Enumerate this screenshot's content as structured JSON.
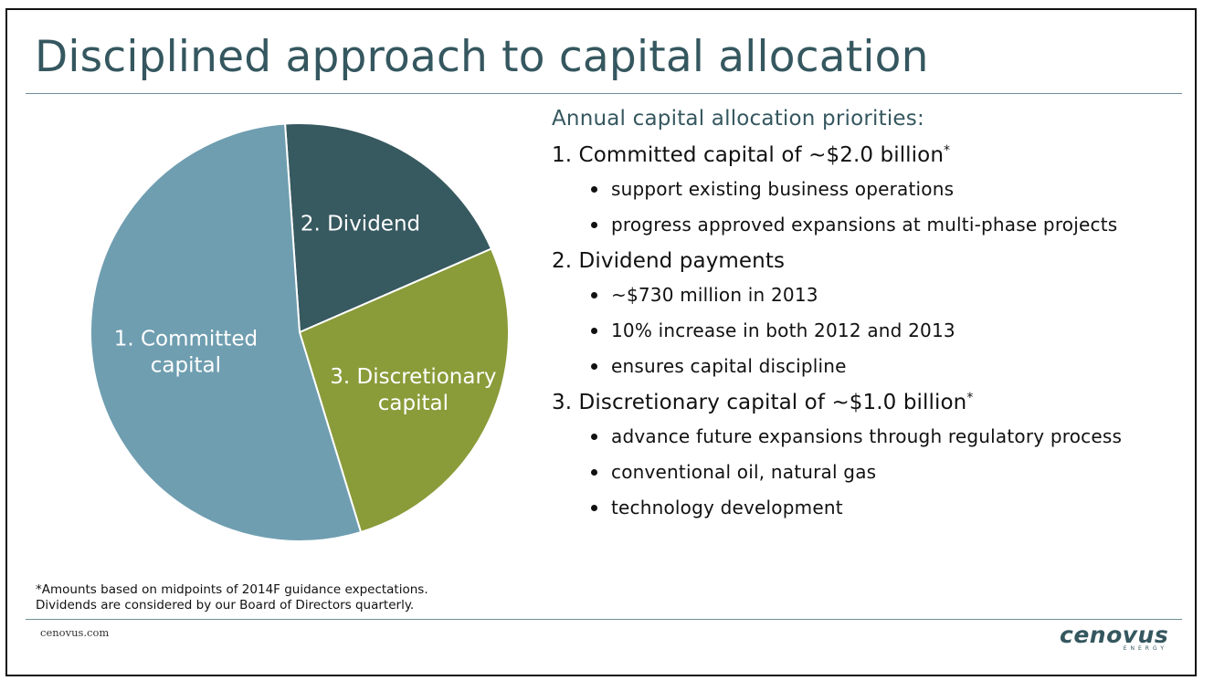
{
  "slide": {
    "title": "Disciplined approach to capital allocation",
    "footnote_lines": [
      "*Amounts based on midpoints of 2014F guidance expectations.",
      "Dividends are considered by our Board of Directors quarterly."
    ],
    "website": "cenovus.com",
    "logo": {
      "word": "cenovus",
      "tagline": "ENERGY"
    }
  },
  "priorities": {
    "heading": "Annual capital allocation priorities:",
    "items": [
      {
        "label": "1. Committed capital of ~$2.0 billion",
        "marker": "*",
        "bullets": [
          "support existing business operations",
          "progress approved expansions at multi-phase projects"
        ]
      },
      {
        "label": "2. Dividend payments",
        "marker": "",
        "bullets": [
          "~$730 million in 2013",
          "10% increase in both 2012 and 2013",
          "ensures capital discipline"
        ]
      },
      {
        "label": "3. Discretionary capital of ~$1.0 billion",
        "marker": "*",
        "bullets": [
          "advance future expansions through regulatory process",
          "conventional oil, natural gas",
          "technology development"
        ]
      }
    ]
  },
  "chart_data": {
    "type": "pie",
    "title": "",
    "slices": [
      {
        "label_lines": [
          "1. Committed",
          "capital"
        ],
        "value": 2.0,
        "color": "#6f9eb0"
      },
      {
        "label_lines": [
          "2. Dividend"
        ],
        "value": 0.73,
        "color": "#375960"
      },
      {
        "label_lines": [
          "3. Discretionary",
          "capital"
        ],
        "value": 1.0,
        "color": "#8a9b39"
      }
    ],
    "start_angle_deg": -4,
    "order": [
      "2. Dividend",
      "3. Discretionary capital",
      "1. Committed capital"
    ],
    "legend": "none"
  }
}
